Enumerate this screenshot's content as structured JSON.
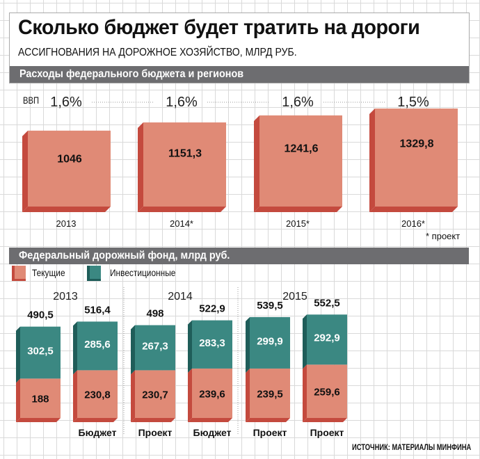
{
  "header": {
    "title": "Сколько бюджет будет тратить на дороги",
    "subtitle": "АССИГНОВАНИЯ НА ДОРОЖНОЕ ХОЗЯЙСТВО, МЛРД РУБ."
  },
  "section1": {
    "title": "Расходы федерального бюджета и регионов",
    "gdp_label": "ВВП",
    "footnote": "* проект"
  },
  "section2": {
    "title": "Федеральный дорожный фонд, млрд руб.",
    "legend": [
      "Текущие",
      "Инвестиционные"
    ]
  },
  "source": "ИСТОЧНИК: МАТЕРИАЛЫ МИНФИНА",
  "colors": {
    "current": "#e08a76",
    "current_dark": "#c44a3e",
    "invest": "#3b8882",
    "invest_dark": "#1f5d59",
    "header_bar": "#6d6d70"
  },
  "chart_data": [
    {
      "type": "bar",
      "title": "Расходы федерального бюджета и регионов",
      "categories": [
        "2013",
        "2014*",
        "2015*",
        "2016*"
      ],
      "values": [
        1046,
        1151.3,
        1241.6,
        1329.8
      ],
      "value_labels": [
        "1046",
        "1151,3",
        "1241,6",
        "1329,8"
      ],
      "gdp_share": [
        "1,6%",
        "1,6%",
        "1,6%",
        "1,5%"
      ],
      "ylabel": "млрд руб."
    },
    {
      "type": "bar",
      "stacked": true,
      "title": "Федеральный дорожный фонд, млрд руб.",
      "groups": [
        "2013",
        "2014",
        "2015"
      ],
      "bars": [
        {
          "group": "2013",
          "label": "",
          "current": 188,
          "invest": 302.5,
          "total": 490.5,
          "labels": [
            "188",
            "302,5",
            "490,5"
          ]
        },
        {
          "group": "2013",
          "label": "Бюджет",
          "current": 230.8,
          "invest": 285.6,
          "total": 516.4,
          "labels": [
            "230,8",
            "285,6",
            "516,4"
          ]
        },
        {
          "group": "2014",
          "label": "Проект",
          "current": 230.7,
          "invest": 267.3,
          "total": 498,
          "labels": [
            "230,7",
            "267,3",
            "498"
          ]
        },
        {
          "group": "2014",
          "label": "Бюджет",
          "current": 239.6,
          "invest": 283.3,
          "total": 522.9,
          "labels": [
            "239,6",
            "283,3",
            "522,9"
          ]
        },
        {
          "group": "2015",
          "label": "Проект",
          "current": 239.5,
          "invest": 299.9,
          "total": 539.5,
          "labels": [
            "239,5",
            "299,9",
            "539,5"
          ]
        },
        {
          "group": "2015",
          "label": "Проект",
          "current": 259.6,
          "invest": 292.9,
          "total": 552.5,
          "labels": [
            "259,6",
            "292,9",
            "552,5"
          ]
        }
      ],
      "series": [
        {
          "name": "Текущие"
        },
        {
          "name": "Инвестиционные"
        }
      ]
    }
  ]
}
